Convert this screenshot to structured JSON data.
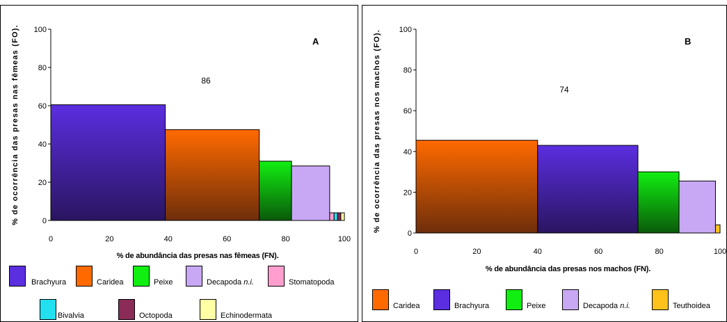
{
  "chart_data": [
    {
      "type": "bar",
      "variable_width": true,
      "panel_label": "A",
      "annotation": "86",
      "xlabel": "% de abundância das presas nas fêmeas (FN).",
      "ylabel": "% de ocorrência das presas nas fêmeas (FO).",
      "xlim": [
        0,
        100
      ],
      "ylim": [
        0,
        100
      ],
      "xticks": [
        "0",
        "20",
        "40",
        "60",
        "80",
        "100"
      ],
      "yticks": [
        "0",
        "20",
        "40",
        "60",
        "80",
        "100"
      ],
      "bars": [
        {
          "name": "Brachyura",
          "x_start": 0,
          "x_end": 39,
          "value": 60.5,
          "color": "#5b2ee0",
          "color_dark": "#2a1560"
        },
        {
          "name": "Caridea",
          "x_start": 39,
          "x_end": 71,
          "value": 47.5,
          "color": "#ff6a00",
          "color_dark": "#6e2e0a"
        },
        {
          "name": "Peixe",
          "x_start": 71,
          "x_end": 82,
          "value": 31,
          "color": "#11ee11",
          "color_dark": "#0a5a0a"
        },
        {
          "name": "Decapoda n.i.",
          "x_start": 82,
          "x_end": 95,
          "value": 28.5,
          "color": "#c8a8f4",
          "color_dark": "#c8a8f4"
        },
        {
          "name": "Stomatopoda",
          "x_start": 95,
          "x_end": 96.5,
          "value": 4,
          "color": "#ff9ecf",
          "color_dark": "#ff9ecf"
        },
        {
          "name": "Bivalvia",
          "x_start": 96.5,
          "x_end": 97.7,
          "value": 4,
          "color": "#22e0f0",
          "color_dark": "#22e0f0"
        },
        {
          "name": "Octopoda",
          "x_start": 97.7,
          "x_end": 98.8,
          "value": 4,
          "color": "#8b2b58",
          "color_dark": "#8b2b58"
        },
        {
          "name": "Echinodermata",
          "x_start": 98.8,
          "x_end": 100,
          "value": 4,
          "color": "#ffffa6",
          "color_dark": "#ffffa6"
        }
      ],
      "legend": [
        {
          "label": "Brachyura",
          "italic": "",
          "color": "#5b2ee0"
        },
        {
          "label": "Caridea",
          "italic": "",
          "color": "#ff6a00"
        },
        {
          "label": "Peixe",
          "italic": "",
          "color": "#11ee11"
        },
        {
          "label": "Decapoda ",
          "italic": "n.i.",
          "color": "#c8a8f4"
        },
        {
          "label": "Stomatopoda",
          "italic": "",
          "color": "#ff9ecf"
        },
        {
          "label": "Bivalvia",
          "italic": "",
          "color": "#22e0f0"
        },
        {
          "label": "Octopoda",
          "italic": "",
          "color": "#8b2b58"
        },
        {
          "label": "Echinodermata",
          "italic": "",
          "color": "#ffffa6"
        }
      ]
    },
    {
      "type": "bar",
      "variable_width": true,
      "panel_label": "B",
      "annotation": "74",
      "xlabel": "% de abundância das presas nos machos (FN).",
      "ylabel": "% de ocorrência das presas nos machos (FO).",
      "xlim": [
        0,
        100
      ],
      "ylim": [
        0,
        100
      ],
      "xticks": [
        "0",
        "20",
        "40",
        "60",
        "80",
        "100"
      ],
      "yticks": [
        "0",
        "20",
        "40",
        "60",
        "80",
        "100"
      ],
      "bars": [
        {
          "name": "Caridea",
          "x_start": 0,
          "x_end": 40,
          "value": 45.5,
          "color": "#ff6a00",
          "color_dark": "#6e2e0a"
        },
        {
          "name": "Brachyura",
          "x_start": 40,
          "x_end": 73,
          "value": 43,
          "color": "#5b2ee0",
          "color_dark": "#2a1560"
        },
        {
          "name": "Peixe",
          "x_start": 73,
          "x_end": 86.5,
          "value": 30,
          "color": "#11ee11",
          "color_dark": "#0a5a0a"
        },
        {
          "name": "Decapoda n.i.",
          "x_start": 86.5,
          "x_end": 98.5,
          "value": 25.5,
          "color": "#c8a8f4",
          "color_dark": "#c8a8f4"
        },
        {
          "name": "Teuthoidea",
          "x_start": 98.5,
          "x_end": 100,
          "value": 4,
          "color": "#ffc21a",
          "color_dark": "#ffc21a"
        }
      ],
      "legend": [
        {
          "label": "Caridea",
          "italic": "",
          "color": "#ff6a00"
        },
        {
          "label": "Brachyura",
          "italic": "",
          "color": "#5b2ee0"
        },
        {
          "label": "Peixe",
          "italic": "",
          "color": "#11ee11"
        },
        {
          "label": "Decapoda ",
          "italic": "n.i.",
          "color": "#c8a8f4"
        },
        {
          "label": "Teuthoidea",
          "italic": "",
          "color": "#ffc21a"
        }
      ]
    }
  ]
}
